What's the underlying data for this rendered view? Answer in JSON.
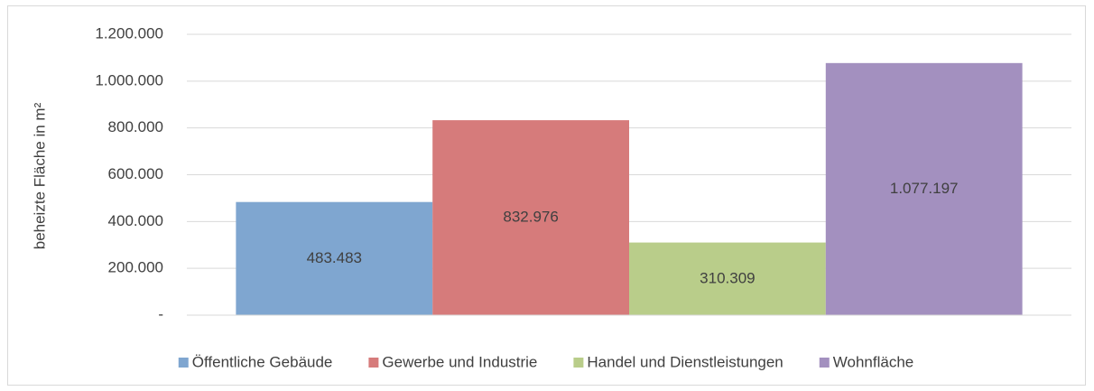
{
  "chart_data": {
    "type": "bar",
    "y_label": "beheizte Fläche in m²",
    "ylim": [
      0,
      1200000
    ],
    "yticks": [
      {
        "value": 0,
        "label": "-"
      },
      {
        "value": 200000,
        "label": "200.000"
      },
      {
        "value": 400000,
        "label": "400.000"
      },
      {
        "value": 600000,
        "label": "600.000"
      },
      {
        "value": 800000,
        "label": "800.000"
      },
      {
        "value": 1000000,
        "label": "1.000.000"
      },
      {
        "value": 1200000,
        "label": "1.200.000"
      }
    ],
    "grid": true,
    "legend": "bottom",
    "series": [
      {
        "name": "Öffentliche Gebäude",
        "color": "#7fa6d0",
        "values": [
          483483
        ],
        "value_labels": [
          "483.483"
        ]
      },
      {
        "name": "Gewerbe und Industrie",
        "color": "#d67b7b",
        "values": [
          832976
        ],
        "value_labels": [
          "832.976"
        ]
      },
      {
        "name": "Handel und Dienstleistungen",
        "color": "#b9cd8a",
        "values": [
          310309
        ],
        "value_labels": [
          "310.309"
        ]
      },
      {
        "name": "Wohnfläche",
        "color": "#a390bf",
        "values": [
          1077197
        ],
        "value_labels": [
          "1.077.197"
        ]
      }
    ]
  }
}
